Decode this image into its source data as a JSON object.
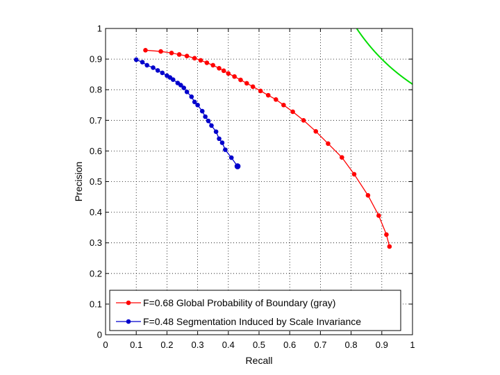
{
  "chart_data": {
    "type": "line",
    "xlabel": "Recall",
    "ylabel": "Precision",
    "xlim": [
      0,
      1
    ],
    "ylim": [
      0,
      1
    ],
    "grid": true,
    "legend_position": "bottom",
    "xticks": [
      0,
      0.1,
      0.2,
      0.3,
      0.4,
      0.5,
      0.6,
      0.7,
      0.8,
      0.9,
      1
    ],
    "yticks": [
      0,
      0.1,
      0.2,
      0.3,
      0.4,
      0.5,
      0.6,
      0.7,
      0.8,
      0.9,
      1
    ],
    "xtick_labels": [
      "0",
      "0.1",
      "0.2",
      "0.3",
      "0.4",
      "0.5",
      "0.6",
      "0.7",
      "0.8",
      "0.9",
      "1"
    ],
    "ytick_labels": [
      "0",
      "0.1",
      "0.2",
      "0.3",
      "0.4",
      "0.5",
      "0.6",
      "0.7",
      "0.8",
      "0.9",
      "1"
    ],
    "series": [
      {
        "name": "F=0.68 Global Probability of Boundary (gray)",
        "color": "#ff0000",
        "x": [
          0.13,
          0.18,
          0.215,
          0.24,
          0.265,
          0.29,
          0.31,
          0.33,
          0.35,
          0.37,
          0.385,
          0.4,
          0.42,
          0.44,
          0.46,
          0.48,
          0.505,
          0.53,
          0.555,
          0.58,
          0.61,
          0.645,
          0.685,
          0.725,
          0.77,
          0.81,
          0.855,
          0.89,
          0.915,
          0.925
        ],
        "y": [
          0.929,
          0.925,
          0.92,
          0.915,
          0.91,
          0.903,
          0.896,
          0.888,
          0.88,
          0.87,
          0.862,
          0.853,
          0.843,
          0.832,
          0.821,
          0.81,
          0.796,
          0.782,
          0.768,
          0.75,
          0.728,
          0.7,
          0.664,
          0.624,
          0.579,
          0.524,
          0.455,
          0.389,
          0.327,
          0.288
        ]
      },
      {
        "name": "F=0.48 Segmentation Induced by Scale Invariance",
        "color": "#0000cc",
        "x": [
          0.1,
          0.12,
          0.135,
          0.155,
          0.17,
          0.185,
          0.2,
          0.21,
          0.22,
          0.235,
          0.245,
          0.255,
          0.265,
          0.28,
          0.29,
          0.3,
          0.315,
          0.325,
          0.335,
          0.345,
          0.36,
          0.37,
          0.38,
          0.39,
          0.41,
          0.43
        ],
        "y": [
          0.898,
          0.89,
          0.88,
          0.872,
          0.863,
          0.855,
          0.846,
          0.84,
          0.833,
          0.822,
          0.815,
          0.806,
          0.793,
          0.777,
          0.76,
          0.75,
          0.73,
          0.712,
          0.698,
          0.683,
          0.663,
          0.64,
          0.627,
          0.604,
          0.578,
          0.55
        ]
      }
    ],
    "iso_f_curve": {
      "f": 0.9,
      "color": "#00dd00"
    }
  }
}
